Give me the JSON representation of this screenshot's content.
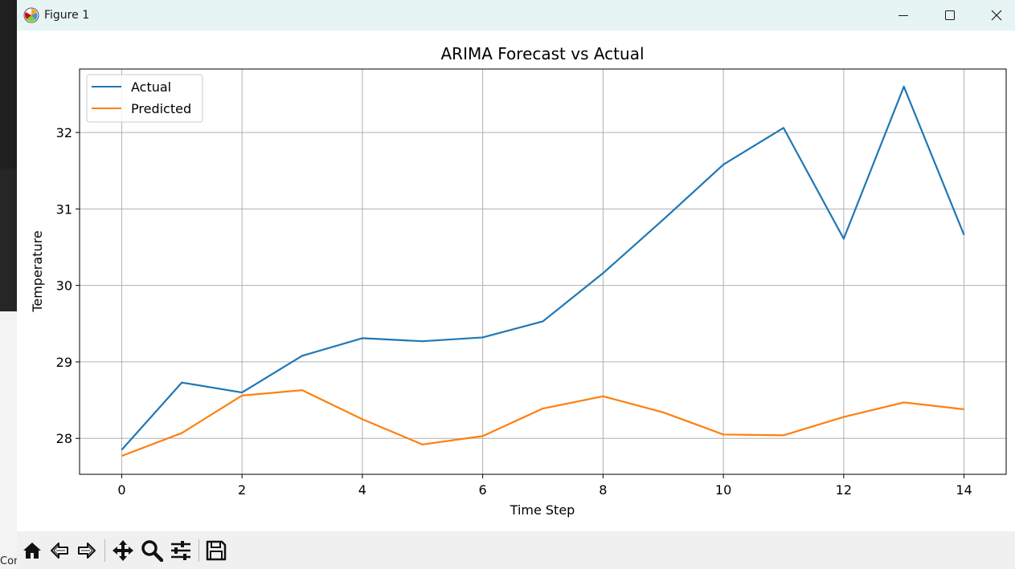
{
  "window": {
    "title": "Figure 1",
    "minimize_icon": "minimize-icon",
    "maximize_icon": "maximize-icon",
    "close_icon": "close-icon"
  },
  "desktop": {
    "partial_text": "Con"
  },
  "toolbar": {
    "buttons": [
      "home-icon",
      "back-arrow-icon",
      "forward-arrow-icon",
      "pan-icon",
      "zoom-icon",
      "configure-subplots-icon",
      "save-icon"
    ]
  },
  "colors": {
    "actual": "#1f77b4",
    "predicted": "#ff7f0e",
    "grid": "#b0b0b0",
    "titlebar": "#e6f4f4",
    "toolbar": "#f0f0f0"
  },
  "chart_data": {
    "type": "line",
    "title": "ARIMA Forecast vs Actual",
    "xlabel": "Time Step",
    "ylabel": "Temperature",
    "x": [
      0,
      1,
      2,
      3,
      4,
      5,
      6,
      7,
      8,
      9,
      10,
      11,
      12,
      13,
      14
    ],
    "xlim": [
      -0.7,
      14.7
    ],
    "ylim": [
      27.53,
      32.83
    ],
    "xticks": [
      0,
      2,
      4,
      6,
      8,
      10,
      12,
      14
    ],
    "yticks": [
      28,
      29,
      30,
      31,
      32
    ],
    "grid": true,
    "legend": "upper left",
    "series": [
      {
        "name": "Actual",
        "values": [
          27.85,
          28.73,
          28.6,
          29.08,
          29.31,
          29.27,
          29.32,
          29.53,
          30.16,
          30.86,
          31.58,
          32.06,
          30.61,
          32.6,
          30.66
        ]
      },
      {
        "name": "Predicted",
        "values": [
          27.77,
          28.07,
          28.56,
          28.63,
          28.25,
          27.92,
          28.03,
          28.39,
          28.55,
          28.34,
          28.05,
          28.04,
          28.28,
          28.47,
          28.38
        ]
      }
    ]
  }
}
